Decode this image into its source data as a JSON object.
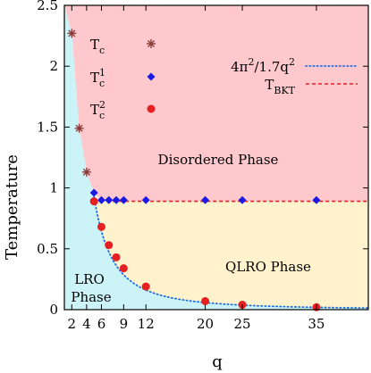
{
  "chart_data": {
    "type": "scatter",
    "xlabel": "q",
    "ylabel": "Temperature",
    "xlim": [
      1,
      42
    ],
    "ylim": [
      0,
      2.5
    ],
    "x_ticks": [
      2,
      4,
      6,
      9,
      12,
      20,
      25,
      35
    ],
    "y_ticks": [
      0,
      0.5,
      1,
      1.5,
      2,
      2.5
    ],
    "y_tick_labels": [
      "0",
      "0.5",
      "1",
      "1.5",
      "2",
      "2.5"
    ],
    "grid": false,
    "legend_position": "top",
    "regions": [
      {
        "name": "Disordered Phase",
        "color": "#ffc8cc"
      },
      {
        "name": "QLRO Phase",
        "color": "#fff2cc"
      },
      {
        "name": "LRO Phase",
        "color": "#ccf4f8"
      }
    ],
    "region_labels": {
      "disordered": "Disordered Phase",
      "qlro": "QLRO Phase",
      "lro_line1": "LRO",
      "lro_line2": "Phase"
    },
    "series": [
      {
        "name": "T_c",
        "label_base": "T",
        "label_sub": "c",
        "label_sup": "",
        "marker": "star",
        "color": "#8b3a3a",
        "x": [
          2,
          3,
          4
        ],
        "y": [
          2.27,
          1.49,
          1.13
        ]
      },
      {
        "name": "T_c^1",
        "label_base": "T",
        "label_sub": "c",
        "label_sup": "1",
        "marker": "diamond",
        "color": "#1a1ae6",
        "x": [
          5,
          6,
          7,
          8,
          9,
          12,
          20,
          25,
          35
        ],
        "y": [
          0.96,
          0.9,
          0.9,
          0.9,
          0.9,
          0.9,
          0.9,
          0.9,
          0.9
        ]
      },
      {
        "name": "T_c^2",
        "label_base": "T",
        "label_sub": "c",
        "label_sup": "2",
        "marker": "circle",
        "color": "#e62020",
        "x": [
          5,
          6,
          7,
          8,
          9,
          12,
          20,
          25,
          35
        ],
        "y": [
          0.89,
          0.68,
          0.53,
          0.43,
          0.34,
          0.19,
          0.07,
          0.04,
          0.02
        ]
      }
    ],
    "lines": [
      {
        "name": "4π²/1.7q²",
        "label_main": "4π",
        "label_sup1": "2",
        "label_mid": "/1.7q",
        "label_sup2": "2",
        "style": "dotted",
        "color": "#1a6ee6",
        "formula": "4*pi^2/(1.7*q^2)",
        "x_range": [
          5,
          42
        ]
      },
      {
        "name": "T_BKT",
        "label_base": "T",
        "label_sub": "BKT",
        "style": "dashed",
        "color": "#e62020",
        "y": 0.89,
        "x_range": [
          5,
          42
        ]
      }
    ]
  }
}
